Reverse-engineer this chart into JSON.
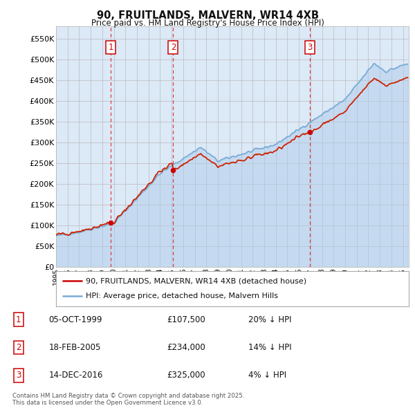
{
  "title": "90, FRUITLANDS, MALVERN, WR14 4XB",
  "subtitle": "Price paid vs. HM Land Registry's House Price Index (HPI)",
  "ylabel_ticks": [
    "£0",
    "£50K",
    "£100K",
    "£150K",
    "£200K",
    "£250K",
    "£300K",
    "£350K",
    "£400K",
    "£450K",
    "£500K",
    "£550K"
  ],
  "ytick_values": [
    0,
    50000,
    100000,
    150000,
    200000,
    250000,
    300000,
    350000,
    400000,
    450000,
    500000,
    550000
  ],
  "ylim": [
    0,
    580000
  ],
  "xlim_start": 1995.0,
  "xlim_end": 2025.5,
  "sale_dates": [
    1999.75,
    2005.13,
    2016.95
  ],
  "sale_prices": [
    107500,
    234000,
    325000
  ],
  "sale_labels": [
    "1",
    "2",
    "3"
  ],
  "sale_info": [
    {
      "num": "1",
      "date": "05-OCT-1999",
      "price": "£107,500",
      "hpi": "20% ↓ HPI"
    },
    {
      "num": "2",
      "date": "18-FEB-2005",
      "price": "£234,000",
      "hpi": "14% ↓ HPI"
    },
    {
      "num": "3",
      "date": "14-DEC-2016",
      "price": "£325,000",
      "hpi": "4% ↓ HPI"
    }
  ],
  "legend_entries": [
    {
      "label": "90, FRUITLANDS, MALVERN, WR14 4XB (detached house)",
      "color": "#cc0000",
      "lw": 1.8
    },
    {
      "label": "HPI: Average price, detached house, Malvern Hills",
      "color": "#7aacd6",
      "lw": 1.8
    }
  ],
  "footer": "Contains HM Land Registry data © Crown copyright and database right 2025.\nThis data is licensed under the Open Government Licence v3.0.",
  "bg_color": "#dce9f7",
  "plot_bg": "#ffffff",
  "grid_color": "#bbbbbb",
  "vline_color": "#dd2222",
  "sale_marker_color": "#cc0000",
  "hpi_line_color": "#7aacd6",
  "hpi_fill_color": "#aac8e8",
  "price_line_color": "#cc2200"
}
